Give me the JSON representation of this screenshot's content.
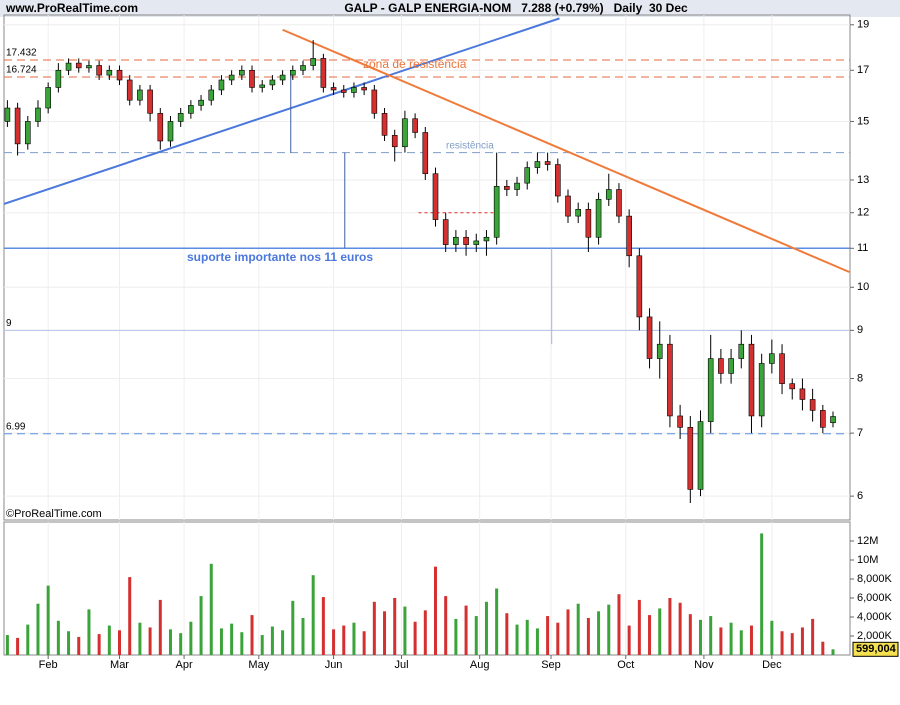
{
  "chart_data": {
    "type": "candlestick",
    "site": "www.ProRealTime.com",
    "title": "GALP - GALP ENERGIA-NOM   7.288 (+0.79%)   Daily  30 Dec",
    "copyright": "©ProRealTime.com",
    "log_scale": true,
    "up_color": "#3aa33a",
    "down_color": "#d43030",
    "xlim": [
      -1,
      248
    ],
    "ylim": [
      5.66,
      19.46
    ],
    "yticks": [
      19,
      17,
      15,
      13,
      12,
      11,
      10,
      9,
      8,
      7,
      6
    ],
    "xticks": [
      {
        "value": 12,
        "label": "Feb"
      },
      {
        "value": 33,
        "label": "Mar"
      },
      {
        "value": 52,
        "label": "Apr"
      },
      {
        "value": 74,
        "label": "May"
      },
      {
        "value": 96,
        "label": "Jun"
      },
      {
        "value": 116,
        "label": "Jul"
      },
      {
        "value": 139,
        "label": "Aug"
      },
      {
        "value": 160,
        "label": "Sep"
      },
      {
        "value": 182,
        "label": "Oct"
      },
      {
        "value": 205,
        "label": "Nov"
      },
      {
        "value": 225,
        "label": "Dec"
      }
    ],
    "x": [
      0,
      3,
      6,
      9,
      12,
      15,
      18,
      21,
      24,
      27,
      30,
      33,
      36,
      39,
      42,
      45,
      48,
      51,
      54,
      57,
      60,
      63,
      66,
      69,
      72,
      75,
      78,
      81,
      84,
      87,
      90,
      93,
      96,
      99,
      102,
      105,
      108,
      111,
      114,
      117,
      120,
      123,
      126,
      129,
      132,
      135,
      138,
      141,
      144,
      147,
      150,
      153,
      156,
      159,
      162,
      165,
      168,
      171,
      174,
      177,
      180,
      183,
      186,
      189,
      192,
      195,
      198,
      201,
      204,
      207,
      210,
      213,
      216,
      219,
      222,
      225,
      228,
      231,
      234,
      237,
      240,
      243
    ],
    "open": [
      15.0,
      15.5,
      14.2,
      15,
      15.5,
      16.3,
      17,
      17.3,
      17.1,
      17.2,
      16.8,
      17,
      16.6,
      15.8,
      16.2,
      15.3,
      14.3,
      15,
      15.3,
      15.6,
      15.8,
      16.2,
      16.6,
      16.8,
      17,
      16.3,
      16.4,
      16.6,
      16.8,
      17,
      17.2,
      17.5,
      16.3,
      16.2,
      16.1,
      16.3,
      16.2,
      15.3,
      14.5,
      14.1,
      15.1,
      14.6,
      13.2,
      11.8,
      11.1,
      11.3,
      11.1,
      11.2,
      11.3,
      12.8,
      12.7,
      12.9,
      13.4,
      13.6,
      13.5,
      12.5,
      11.9,
      12.1,
      11.3,
      12.4,
      12.7,
      11.9,
      10.8,
      9.3,
      8.4,
      8.7,
      7.3,
      7.1,
      6.1,
      7.2,
      8.4,
      8.1,
      8.4,
      8.7,
      7.3,
      8.3,
      8.5,
      7.9,
      7.8,
      7.6,
      7.4,
      7.18
    ],
    "high": [
      15.8,
      15.7,
      15.2,
      15.8,
      16.5,
      17.3,
      17.5,
      17.5,
      17.4,
      17.4,
      17.2,
      17.2,
      16.8,
      16.4,
      16.4,
      15.5,
      15.2,
      15.5,
      15.8,
      16.0,
      16.4,
      16.8,
      17.0,
      17.2,
      17.2,
      16.6,
      16.8,
      17.0,
      17.2,
      17.4,
      18.3,
      17.7,
      16.5,
      16.4,
      16.5,
      16.5,
      16.4,
      15.5,
      14.7,
      15.4,
      15.3,
      14.8,
      13.4,
      12.0,
      11.5,
      11.5,
      11.4,
      11.5,
      13.9,
      13.0,
      13.1,
      13.6,
      13.9,
      13.9,
      13.7,
      12.7,
      12.3,
      12.3,
      12.6,
      13.2,
      12.9,
      12.1,
      11.0,
      9.5,
      9.2,
      8.9,
      7.5,
      7.3,
      7.4,
      8.9,
      8.6,
      8.6,
      9.0,
      8.9,
      8.5,
      8.8,
      8.7,
      8.0,
      8.0,
      7.8,
      7.5,
      7.38
    ],
    "low": [
      14.8,
      13.8,
      14.0,
      14.8,
      15.3,
      16.1,
      16.8,
      16.9,
      16.9,
      16.6,
      16.6,
      16.4,
      15.6,
      15.6,
      15.0,
      14.0,
      14.1,
      14.8,
      15.1,
      15.4,
      15.6,
      16.0,
      16.4,
      16.6,
      16.1,
      16.1,
      16.2,
      16.4,
      16.6,
      16.8,
      17.0,
      16.1,
      16.0,
      15.9,
      15.9,
      16.0,
      15.1,
      14.3,
      13.6,
      13.9,
      14.4,
      13.0,
      11.6,
      10.9,
      10.9,
      10.8,
      10.9,
      10.8,
      11.1,
      12.5,
      12.5,
      12.7,
      13.2,
      13.3,
      12.3,
      11.7,
      11.7,
      10.9,
      11.1,
      12.2,
      11.7,
      10.5,
      9.0,
      8.2,
      8.0,
      7.1,
      6.9,
      5.9,
      6.0,
      7.0,
      7.9,
      7.9,
      8.2,
      7.0,
      7.1,
      8.1,
      7.7,
      7.6,
      7.4,
      7.2,
      7.0,
      7.1
    ],
    "close": [
      15.5,
      14.2,
      15,
      15.5,
      16.3,
      17,
      17.3,
      17.1,
      17.2,
      16.8,
      17,
      16.6,
      15.8,
      16.2,
      15.3,
      14.3,
      15,
      15.3,
      15.6,
      15.8,
      16.2,
      16.6,
      16.8,
      17,
      16.3,
      16.4,
      16.6,
      16.8,
      17,
      17.2,
      17.5,
      16.3,
      16.2,
      16.1,
      16.3,
      16.2,
      15.3,
      14.5,
      14.1,
      15.1,
      14.6,
      13.2,
      11.8,
      11.1,
      11.3,
      11.1,
      11.2,
      11.3,
      12.8,
      12.7,
      12.9,
      13.4,
      13.6,
      13.5,
      12.5,
      11.9,
      12.1,
      11.3,
      12.4,
      12.7,
      11.9,
      10.8,
      9.3,
      8.4,
      8.7,
      7.3,
      7.1,
      6.1,
      7.2,
      8.4,
      8.1,
      8.4,
      8.7,
      7.3,
      8.3,
      8.5,
      7.9,
      7.8,
      7.6,
      7.4,
      7.1,
      7.29
    ],
    "volume": [
      2100000,
      1800000,
      3200000,
      5400000,
      7300000,
      3600000,
      2500000,
      1900000,
      4800000,
      2200000,
      3100000,
      2600000,
      8200000,
      3400000,
      2900000,
      5800000,
      2700000,
      2300000,
      3500000,
      6200000,
      9600000,
      2800000,
      3300000,
      2400000,
      4200000,
      2100000,
      3000000,
      2600000,
      5700000,
      3900000,
      8400000,
      6100000,
      2700000,
      3100000,
      3400000,
      2500000,
      5600000,
      4600000,
      6000000,
      5100000,
      3500000,
      4700000,
      9300000,
      6200000,
      3800000,
      5200000,
      4100000,
      5600000,
      7000000,
      4400000,
      3200000,
      3700000,
      2800000,
      4100000,
      3400000,
      4800000,
      5400000,
      3900000,
      4600000,
      5300000,
      6400000,
      3100000,
      5800000,
      4200000,
      4900000,
      6000000,
      5500000,
      4300000,
      3700000,
      4100000,
      2900000,
      3400000,
      2600000,
      3100000,
      12800000,
      3600000,
      2500000,
      2300000,
      2900000,
      3800000,
      1400000,
      599004
    ],
    "volume_last_label": "599,004",
    "volume_ylim": [
      0,
      14000000
    ],
    "volume_yticks": [
      {
        "value": 2000000,
        "label": "2,000K"
      },
      {
        "value": 4000000,
        "label": "4,000K"
      },
      {
        "value": 6000000,
        "label": "6,000K"
      },
      {
        "value": 8000000,
        "label": "8,000K"
      },
      {
        "value": 10000000,
        "label": "10M"
      },
      {
        "value": 12000000,
        "label": "12M"
      }
    ],
    "levels": [
      {
        "value": 17.432,
        "color": "#e06a40",
        "style": "dashed",
        "labeled": true
      },
      {
        "value": 16.724,
        "color": "#e06a40",
        "style": "dashed",
        "labeled": true
      },
      {
        "value": 13.9,
        "color": "#7f9cc8",
        "style": "dashed",
        "labeled": false
      },
      {
        "value": 11,
        "color": "#5b8de0",
        "style": "solid",
        "labeled": false
      },
      {
        "value": 9,
        "color": "#b4c2e6",
        "style": "solid",
        "labeled": true
      },
      {
        "value": 6.99,
        "color": "#5b8de0",
        "style": "dashed",
        "labeled": true
      }
    ],
    "lines": [
      {
        "x": [
          -1,
          162.5
        ],
        "price": [
          12.26,
          19.3
        ],
        "color": "#4a78dc",
        "style": "solid"
      },
      {
        "x": [
          81,
          247.8
        ],
        "price": [
          18.77,
          10.38
        ],
        "color": "#f07a3a",
        "style": "solid"
      },
      {
        "x": [
          121,
          143
        ],
        "price": [
          12,
          12
        ],
        "color": "#e03030",
        "style": "dotted"
      },
      {
        "x": [
          83.4,
          83.4
        ],
        "price": [
          17,
          13.9
        ],
        "color": "#4060a0",
        "style": "solid"
      },
      {
        "x": [
          99.3,
          99.3
        ],
        "price": [
          13.9,
          11
        ],
        "color": "#4060a0",
        "style": "solid"
      },
      {
        "x": [
          160.2,
          160.2
        ],
        "price": [
          11,
          8.7
        ],
        "color": "#a8b8d8",
        "style": "solid"
      }
    ],
    "annotations": [
      "zona de resistência",
      "resistência",
      "suporte importante nos 11 euros"
    ]
  }
}
